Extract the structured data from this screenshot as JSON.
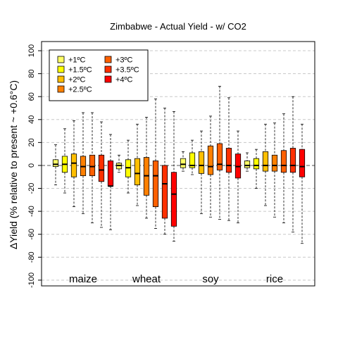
{
  "chart_data": {
    "type": "boxplot",
    "title": "Zimbabwe - Actual Yield - w/ CO2",
    "ylabel": "ΔYield (% relative to present ~ +0.6°C)",
    "xlabel": "",
    "ylim": [
      -105,
      108
    ],
    "yticks": [
      -100,
      -80,
      -60,
      -40,
      -20,
      0,
      20,
      40,
      60,
      80,
      100
    ],
    "grid": "horizontal-dashed",
    "legend_position": "top-left",
    "series": [
      {
        "name": "+1ºC",
        "color": "#ffff66"
      },
      {
        "name": "+1.5ºC",
        "color": "#ffff00"
      },
      {
        "name": "+2ºC",
        "color": "#ffbf00"
      },
      {
        "name": "+2.5ºC",
        "color": "#ff8000"
      },
      {
        "name": "+3ºC",
        "color": "#ff6000"
      },
      {
        "name": "+3.5ºC",
        "color": "#ff3000"
      },
      {
        "name": "+4ºC",
        "color": "#ff0000"
      }
    ],
    "crops": [
      {
        "name": "maize",
        "boxes": [
          {
            "whisker_low": -17,
            "q1": -1,
            "median": 1,
            "q3": 5,
            "whisker_high": 18
          },
          {
            "whisker_low": -24,
            "q1": -6,
            "median": 1,
            "q3": 8,
            "whisker_high": 32
          },
          {
            "whisker_low": -36,
            "q1": -10,
            "median": 2,
            "q3": 10,
            "whisker_high": 39
          },
          {
            "whisker_low": -42,
            "q1": -9,
            "median": -1,
            "q3": 8,
            "whisker_high": 46
          },
          {
            "whisker_low": -50,
            "q1": -9,
            "median": -1,
            "q3": 9,
            "whisker_high": 46
          },
          {
            "whisker_low": -54,
            "q1": -14,
            "median": -4,
            "q3": 9,
            "whisker_high": 38
          },
          {
            "whisker_low": -56,
            "q1": -18,
            "median": -18,
            "q3": 4,
            "whisker_high": 27
          }
        ]
      },
      {
        "name": "wheat",
        "boxes": [
          {
            "whisker_low": -6,
            "q1": -3,
            "median": 0,
            "q3": 2,
            "whisker_high": 9
          },
          {
            "whisker_low": -24,
            "q1": -10,
            "median": -2,
            "q3": 5,
            "whisker_high": 22
          },
          {
            "whisker_low": -35,
            "q1": -17,
            "median": -7,
            "q3": 6,
            "whisker_high": 36
          },
          {
            "whisker_low": -46,
            "q1": -26,
            "median": -9,
            "q3": 7,
            "whisker_high": 42
          },
          {
            "whisker_low": -55,
            "q1": -36,
            "median": -9,
            "q3": 4,
            "whisker_high": 58
          },
          {
            "whisker_low": -60,
            "q1": -46,
            "median": -16,
            "q3": 0,
            "whisker_high": 50
          },
          {
            "whisker_low": -66,
            "q1": -53,
            "median": -25,
            "q3": -6,
            "whisker_high": 47
          }
        ]
      },
      {
        "name": "soy",
        "boxes": [
          {
            "whisker_low": -5,
            "q1": -2,
            "median": 1,
            "q3": 6,
            "whisker_high": 12
          },
          {
            "whisker_low": -8,
            "q1": -2,
            "median": 0,
            "q3": 11,
            "whisker_high": 22
          },
          {
            "whisker_low": -42,
            "q1": -7,
            "median": 0,
            "q3": 12,
            "whisker_high": 30
          },
          {
            "whisker_low": -45,
            "q1": -8,
            "median": -1,
            "q3": 17,
            "whisker_high": 43
          },
          {
            "whisker_low": -47,
            "q1": -4,
            "median": 1,
            "q3": 19,
            "whisker_high": 69
          },
          {
            "whisker_low": -48,
            "q1": -6,
            "median": 0,
            "q3": 15,
            "whisker_high": 59
          },
          {
            "whisker_low": -50,
            "q1": -11,
            "median": -1,
            "q3": 10,
            "whisker_high": 30
          }
        ]
      },
      {
        "name": "rice",
        "boxes": [
          {
            "whisker_low": -5,
            "q1": -2,
            "median": 0,
            "q3": 4,
            "whisker_high": 11
          },
          {
            "whisker_low": -20,
            "q1": -3,
            "median": 0,
            "q3": 6,
            "whisker_high": 14
          },
          {
            "whisker_low": -35,
            "q1": -5,
            "median": 0,
            "q3": 12,
            "whisker_high": 36
          },
          {
            "whisker_low": -45,
            "q1": -5,
            "median": 0,
            "q3": 9,
            "whisker_high": 37
          },
          {
            "whisker_low": -50,
            "q1": -6,
            "median": 0,
            "q3": 13,
            "whisker_high": 45
          },
          {
            "whisker_low": -58,
            "q1": -6,
            "median": 0,
            "q3": 15,
            "whisker_high": 60
          },
          {
            "whisker_low": -68,
            "q1": -10,
            "median": -1,
            "q3": 14,
            "whisker_high": 36
          }
        ]
      }
    ]
  }
}
